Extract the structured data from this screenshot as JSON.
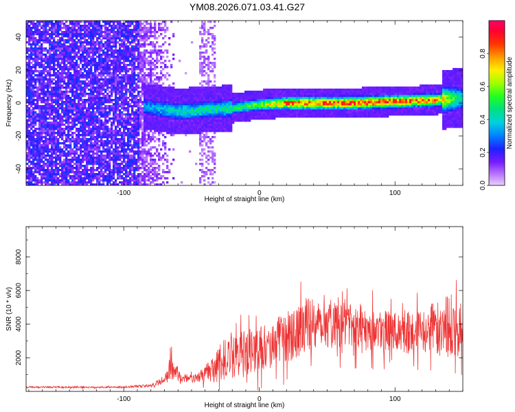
{
  "title": "YM08.2026.071.03.41.G27",
  "chart_data": [
    {
      "type": "heatmap",
      "xlabel": "Height of straight line (km)",
      "ylabel": "Frequency (Hz)",
      "xlim": [
        -172,
        150
      ],
      "ylim": [
        -50,
        50
      ],
      "xticks": [
        -100,
        0,
        100
      ],
      "yticks": [
        -40,
        -20,
        0,
        20,
        40
      ],
      "colorbar": {
        "label": "Normalized spectral amplitude",
        "range": [
          0,
          1
        ],
        "ticks": [
          0.0,
          0.2,
          0.4,
          0.6,
          0.8
        ]
      },
      "ridge": [
        {
          "x": -172,
          "f": 0,
          "amp": 0.1
        },
        {
          "x": -85,
          "f": -2,
          "amp": 0.35
        },
        {
          "x": -60,
          "f": -5,
          "amp": 0.45
        },
        {
          "x": -40,
          "f": -4,
          "amp": 0.45
        },
        {
          "x": -20,
          "f": -3,
          "amp": 0.5
        },
        {
          "x": 0,
          "f": -1,
          "amp": 0.6
        },
        {
          "x": 20,
          "f": 0,
          "amp": 0.85
        },
        {
          "x": 60,
          "f": 0,
          "amp": 0.9
        },
        {
          "x": 100,
          "f": 1,
          "amp": 0.9
        },
        {
          "x": 130,
          "f": 2,
          "amp": 0.85
        },
        {
          "x": 150,
          "f": 3,
          "amp": 0.4
        }
      ]
    },
    {
      "type": "line",
      "xlabel": "Height of straight line (km)",
      "ylabel": "SNR (10 * v/v)",
      "xlim": [
        -172,
        150
      ],
      "ylim": [
        0,
        9800
      ],
      "xticks": [
        -100,
        0,
        100
      ],
      "yticks": [
        2000,
        4000,
        6000,
        8000
      ],
      "color": "#ee3333",
      "envelope": [
        {
          "x": -172,
          "mean": 250,
          "amp": 80
        },
        {
          "x": -100,
          "mean": 250,
          "amp": 100
        },
        {
          "x": -80,
          "mean": 350,
          "amp": 150
        },
        {
          "x": -70,
          "mean": 700,
          "amp": 500
        },
        {
          "x": -65,
          "mean": 1500,
          "amp": 1500
        },
        {
          "x": -57,
          "mean": 700,
          "amp": 400
        },
        {
          "x": -45,
          "mean": 800,
          "amp": 500
        },
        {
          "x": -30,
          "mean": 1600,
          "amp": 1800
        },
        {
          "x": -20,
          "mean": 2200,
          "amp": 2600
        },
        {
          "x": 0,
          "mean": 2500,
          "amp": 2400
        },
        {
          "x": 20,
          "mean": 3200,
          "amp": 2800
        },
        {
          "x": 40,
          "mean": 4200,
          "amp": 3000
        },
        {
          "x": 60,
          "mean": 4000,
          "amp": 2600
        },
        {
          "x": 80,
          "mean": 3800,
          "amp": 2500
        },
        {
          "x": 100,
          "mean": 3500,
          "amp": 2200
        },
        {
          "x": 120,
          "mean": 3500,
          "amp": 2400
        },
        {
          "x": 140,
          "mean": 4000,
          "amp": 3600
        },
        {
          "x": 150,
          "mean": 3500,
          "amp": 3000
        }
      ]
    }
  ]
}
